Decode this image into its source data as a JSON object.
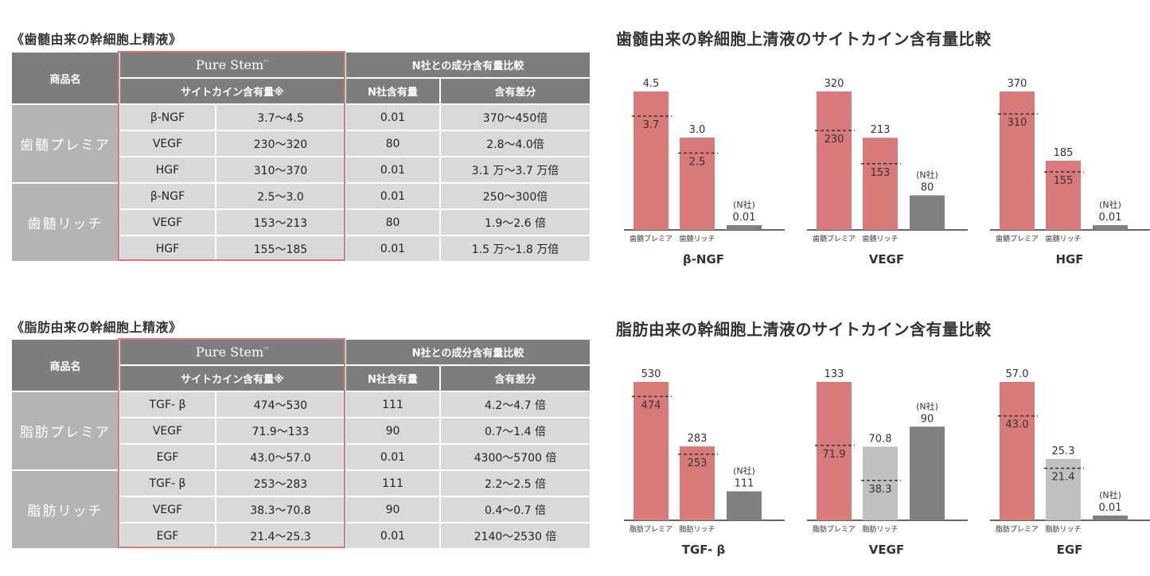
{
  "tables": [
    {
      "label": "《歯髄由来の幹細胞上精液》",
      "hdr_product": "商品名",
      "hdr_brand": "Pure Stem",
      "hdr_tm": "™",
      "hdr_compare": "N社との成分含有量比較",
      "hdr_content": "サイトカイン含有量※",
      "hdr_n": "N社含有量",
      "hdr_diff": "含有差分",
      "groups": [
        {
          "product": "歯髄プレミア",
          "rows": [
            {
              "factor": "β-NGF",
              "range": "3.7～4.5",
              "n": "0.01",
              "diff": "370～450倍"
            },
            {
              "factor": "VEGF",
              "range": "230～320",
              "n": "80",
              "diff": "2.8～4.0倍"
            },
            {
              "factor": "HGF",
              "range": "310～370",
              "n": "0.01",
              "diff": "3.1 万～3.7 万倍"
            }
          ]
        },
        {
          "product": "歯髄リッチ",
          "rows": [
            {
              "factor": "β-NGF",
              "range": "2.5～3.0",
              "n": "0.01",
              "diff": "250～300倍"
            },
            {
              "factor": "VEGF",
              "range": "153～213",
              "n": "80",
              "diff": "1.9～2.6 倍"
            },
            {
              "factor": "HGF",
              "range": "155～185",
              "n": "0.01",
              "diff": "1.5 万～1.8 万倍"
            }
          ]
        }
      ]
    },
    {
      "label": "《脂肪由来の幹細胞上精液》",
      "hdr_product": "商品名",
      "hdr_brand": "Pure Stem",
      "hdr_tm": "™",
      "hdr_compare": "N社との成分含有量比較",
      "hdr_content": "サイトカイン含有量※",
      "hdr_n": "N社含有量",
      "hdr_diff": "含有差分",
      "groups": [
        {
          "product": "脂肪プレミア",
          "rows": [
            {
              "factor": "TGF- β",
              "range": "474～530",
              "n": "111",
              "diff": "4.2～4.7 倍"
            },
            {
              "factor": "VEGF",
              "range": "71.9～133",
              "n": "90",
              "diff": "0.7～1.4 倍"
            },
            {
              "factor": "EGF",
              "range": "43.0～57.0",
              "n": "0.01",
              "diff": "4300～5700 倍"
            }
          ]
        },
        {
          "product": "脂肪リッチ",
          "rows": [
            {
              "factor": "TGF- β",
              "range": "253～283",
              "n": "111",
              "diff": "2.2～2.5 倍"
            },
            {
              "factor": "VEGF",
              "range": "38.3～70.8",
              "n": "90",
              "diff": "0.4～0.7 倍"
            },
            {
              "factor": "EGF",
              "range": "21.4～25.3",
              "n": "0.01",
              "diff": "2140～2530 倍"
            }
          ]
        }
      ]
    }
  ],
  "chart_titles": [
    "歯髄由来の幹細胞上清液のサイトカイン含有量比較",
    "脂肪由来の幹細胞上清液のサイトカイン含有量比較"
  ],
  "colors": {
    "premier": "#d97a7a",
    "rich_pink": "#d97a7a",
    "rich_gray": "#c0c0c0",
    "ncompany": "#808080"
  },
  "chart_data": [
    {
      "type": "bar",
      "title": "β-NGF",
      "ymax": 4.5,
      "group": "dental",
      "bars": [
        {
          "label": "歯髄プレミア",
          "max": 4.5,
          "min": 3.7,
          "max_label": "4.5",
          "min_label": "3.7",
          "color": "premier"
        },
        {
          "label": "歯髄リッチ",
          "max": 3.0,
          "min": 2.5,
          "max_label": "3.0",
          "min_label": "2.5",
          "color": "rich_pink"
        },
        {
          "label": "",
          "value": 0.01,
          "value_label": "0.01",
          "tag": "(N社)",
          "color": "ncompany"
        }
      ]
    },
    {
      "type": "bar",
      "title": "VEGF",
      "ymax": 320,
      "group": "dental",
      "bars": [
        {
          "label": "歯髄プレミア",
          "max": 320,
          "min": 230,
          "max_label": "320",
          "min_label": "230",
          "color": "premier"
        },
        {
          "label": "歯髄リッチ",
          "max": 213,
          "min": 153,
          "max_label": "213",
          "min_label": "153",
          "color": "rich_pink"
        },
        {
          "label": "",
          "value": 80,
          "value_label": "80",
          "tag": "(N社)",
          "color": "ncompany"
        }
      ]
    },
    {
      "type": "bar",
      "title": "HGF",
      "ymax": 370,
      "group": "dental",
      "bars": [
        {
          "label": "歯髄プレミア",
          "max": 370,
          "min": 310,
          "max_label": "370",
          "min_label": "310",
          "color": "premier"
        },
        {
          "label": "歯髄リッチ",
          "max": 185,
          "min": 155,
          "max_label": "185",
          "min_label": "155",
          "color": "rich_pink"
        },
        {
          "label": "",
          "value": 0.01,
          "value_label": "0.01",
          "tag": "(N社)",
          "color": "ncompany"
        }
      ]
    },
    {
      "type": "bar",
      "title": "TGF- β",
      "ymax": 530,
      "group": "fat",
      "bars": [
        {
          "label": "脂肪プレミア",
          "max": 530,
          "min": 474,
          "max_label": "530",
          "min_label": "474",
          "color": "premier"
        },
        {
          "label": "脂肪リッチ",
          "max": 283,
          "min": 253,
          "max_label": "283",
          "min_label": "253",
          "color": "rich_pink"
        },
        {
          "label": "",
          "value": 111,
          "value_label": "111",
          "tag": "(N社)",
          "color": "ncompany"
        }
      ]
    },
    {
      "type": "bar",
      "title": "VEGF",
      "ymax": 133,
      "group": "fat",
      "bars": [
        {
          "label": "脂肪プレミア",
          "max": 133,
          "min": 71.9,
          "max_label": "133",
          "min_label": "71.9",
          "color": "premier"
        },
        {
          "label": "脂肪リッチ",
          "max": 70.8,
          "min": 38.3,
          "max_label": "70.8",
          "min_label": "38.3",
          "color": "rich_gray"
        },
        {
          "label": "",
          "value": 90,
          "value_label": "90",
          "tag": "(N社)",
          "color": "ncompany"
        }
      ]
    },
    {
      "type": "bar",
      "title": "EGF",
      "ymax": 57.0,
      "group": "fat",
      "bars": [
        {
          "label": "脂肪プレミア",
          "max": 57.0,
          "min": 43.0,
          "max_label": "57.0",
          "min_label": "43.0",
          "color": "premier"
        },
        {
          "label": "脂肪リッチ",
          "max": 25.3,
          "min": 21.4,
          "max_label": "25.3",
          "min_label": "21.4",
          "color": "rich_gray"
        },
        {
          "label": "",
          "value": 0.01,
          "value_label": "0.01",
          "tag": "(N社)",
          "color": "ncompany"
        }
      ]
    }
  ]
}
